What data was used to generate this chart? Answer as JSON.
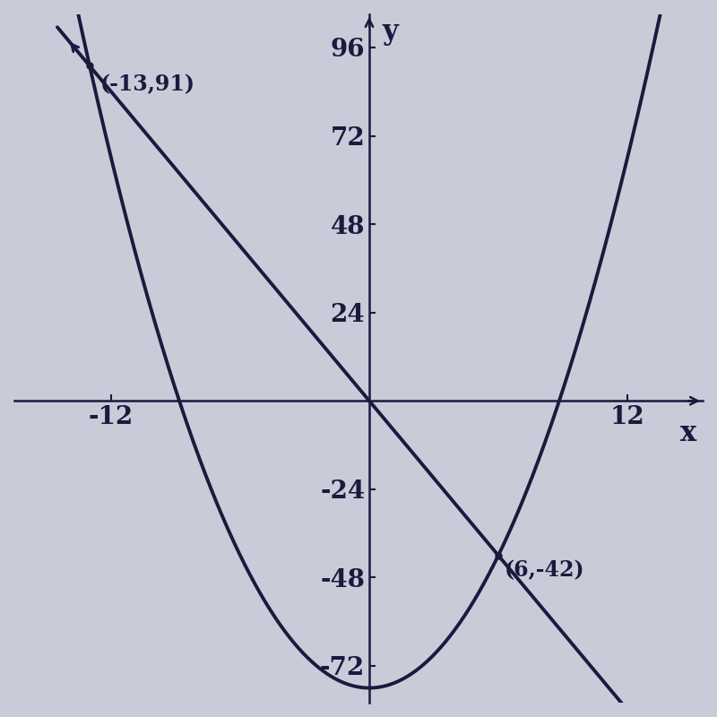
{
  "intersection1": [
    -13,
    91
  ],
  "intersection2": [
    6,
    -42
  ],
  "line_slope": -7,
  "line_intercept": 0,
  "parabola_a": 1,
  "parabola_b": 0,
  "parabola_c": -78,
  "xlim": [
    -16.5,
    15.5
  ],
  "ylim": [
    -82,
    105
  ],
  "xticks": [
    -12,
    12
  ],
  "yticks": [
    -72,
    -48,
    -24,
    24,
    48,
    72,
    96
  ],
  "xlabel": "x",
  "ylabel": "y",
  "background_color": "#c8ccd8",
  "curve_color": "#1a1a3e",
  "line_color": "#1a1a3e",
  "font_color": "#1a1a3e",
  "tick_fontsize": 20,
  "label_fontsize": 22,
  "annotation_fontsize": 17,
  "ann1_text": "(-13,91)",
  "ann2_text": "(6,-42)"
}
